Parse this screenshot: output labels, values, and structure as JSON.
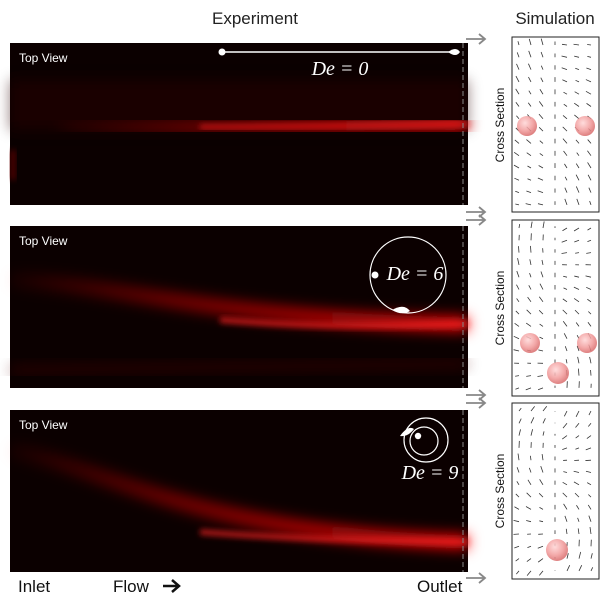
{
  "header": {
    "experiment": "Experiment",
    "simulation": "Simulation"
  },
  "panels": [
    {
      "top_view": "Top View",
      "de_label": "De = 0",
      "cross_section": "Cross Section"
    },
    {
      "top_view": "Top View",
      "de_label": "De = 6",
      "cross_section": "Cross Section"
    },
    {
      "top_view": "Top View",
      "de_label": "De = 9",
      "cross_section": "Cross Section"
    }
  ],
  "footer": {
    "inlet": "Inlet",
    "flow": "Flow",
    "outlet": "Outlet"
  }
}
